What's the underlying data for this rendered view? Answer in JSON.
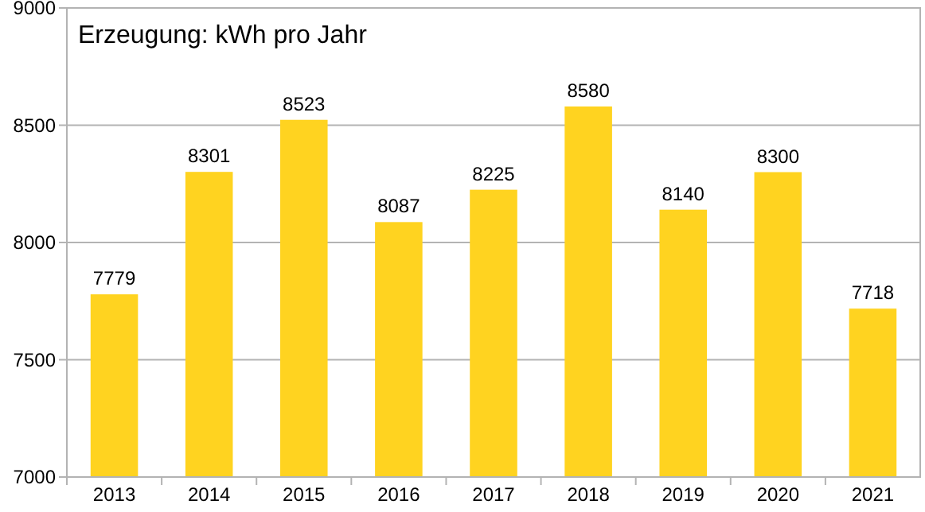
{
  "chart_data": {
    "type": "bar",
    "title": "Erzeugung: kWh pro Jahr",
    "categories": [
      "2013",
      "2014",
      "2015",
      "2016",
      "2017",
      "2018",
      "2019",
      "2020",
      "2021"
    ],
    "values": [
      7779,
      8301,
      8523,
      8087,
      8225,
      8580,
      8140,
      8300,
      7718
    ],
    "color": "#ffd320",
    "ylim": [
      7000,
      9000
    ],
    "yticks": [
      7000,
      7500,
      8000,
      8500,
      9000
    ],
    "grid": "y",
    "data_labels": true
  }
}
